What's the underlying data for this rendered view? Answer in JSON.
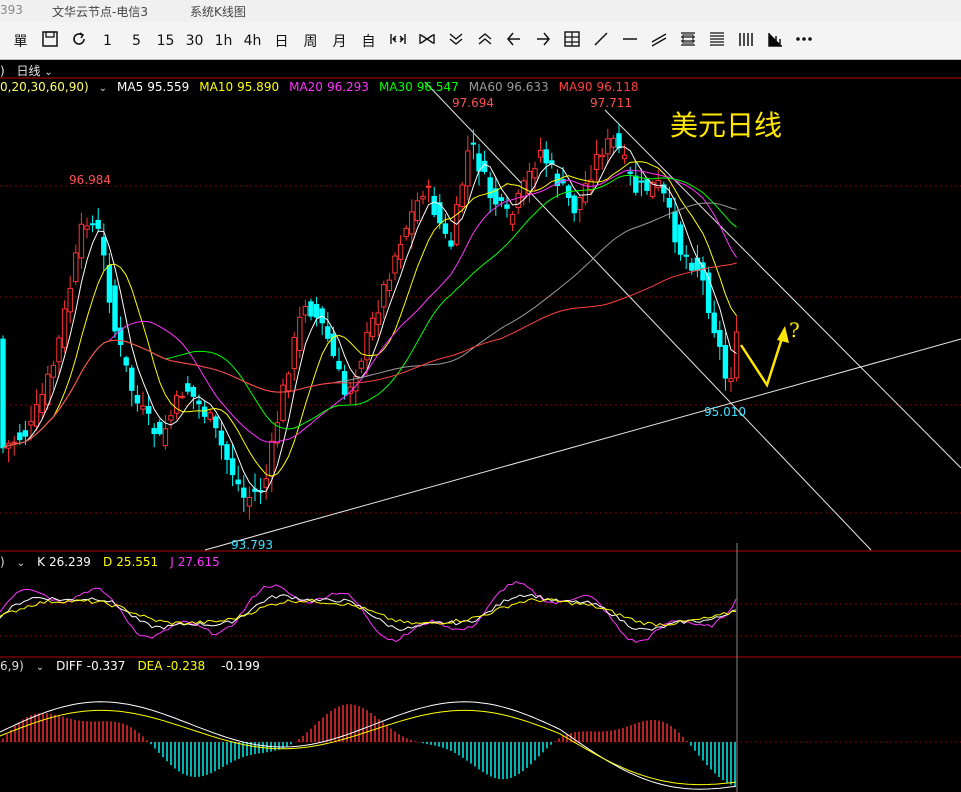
{
  "titlebar": {
    "code_fragment": "393",
    "tab_server": "文华云节点-电信3",
    "tab_system": "系统K线图"
  },
  "toolbar": {
    "buttons": [
      {
        "icon": "single-icon",
        "label": "單"
      },
      {
        "icon": "save-icon",
        "label": ""
      },
      {
        "icon": "refresh-icon",
        "label": ""
      },
      {
        "icon": "",
        "label": "1"
      },
      {
        "icon": "",
        "label": "5"
      },
      {
        "icon": "",
        "label": "15"
      },
      {
        "icon": "",
        "label": "30"
      },
      {
        "icon": "",
        "label": "1h"
      },
      {
        "icon": "",
        "label": "4h"
      },
      {
        "icon": "",
        "label": "日"
      },
      {
        "icon": "",
        "label": "周"
      },
      {
        "icon": "",
        "label": "月"
      },
      {
        "icon": "",
        "label": "自"
      },
      {
        "icon": "zoom-out-icon",
        "label": ""
      },
      {
        "icon": "zoom-in-icon",
        "label": ""
      },
      {
        "icon": "chevrons-down-icon",
        "label": ""
      },
      {
        "icon": "chevrons-up-icon",
        "label": ""
      },
      {
        "icon": "arrow-left-icon",
        "label": ""
      },
      {
        "icon": "arrow-right-icon",
        "label": ""
      },
      {
        "icon": "layout-icon",
        "label": ""
      },
      {
        "icon": "line-icon",
        "label": ""
      },
      {
        "icon": "hline-icon",
        "label": ""
      },
      {
        "icon": "parallel-icon",
        "label": ""
      },
      {
        "icon": "fib-icon",
        "label": ""
      },
      {
        "icon": "fib2-icon",
        "label": ""
      },
      {
        "icon": "bars-icon",
        "label": ""
      },
      {
        "icon": "indicator-icon",
        "label": ""
      },
      {
        "icon": "more-icon",
        "label": ""
      }
    ]
  },
  "period": {
    "label": "日线",
    "prefix": ")"
  },
  "ma_legend": {
    "params": "0,20,30,60,90)",
    "items": [
      {
        "label": "MA5",
        "value": "95.559",
        "color": "#ffffff"
      },
      {
        "label": "MA10",
        "value": "95.890",
        "color": "#ffff00"
      },
      {
        "label": "MA20",
        "value": "96.293",
        "color": "#ff33ff"
      },
      {
        "label": "MA30",
        "value": "96.547",
        "color": "#00ff00"
      },
      {
        "label": "MA60",
        "value": "96.633",
        "color": "#9a9a9a"
      },
      {
        "label": "MA90",
        "value": "96.118",
        "color": "#ff4040"
      }
    ]
  },
  "price_labels": [
    {
      "text": "96.984",
      "color": "#ff5050"
    },
    {
      "text": "97.694",
      "color": "#ff5050"
    },
    {
      "text": "97.711",
      "color": "#ff5050"
    },
    {
      "text": "93.793",
      "color": "#40e0ff"
    },
    {
      "text": "95.010",
      "color": "#40e0ff"
    }
  ],
  "annotation": {
    "title": "美元日线",
    "question": "?"
  },
  "kdj_legend": {
    "params": ")",
    "items": [
      {
        "label": "K",
        "value": "26.239",
        "color": "#ffffff"
      },
      {
        "label": "D",
        "value": "25.551",
        "color": "#ffff00"
      },
      {
        "label": "J",
        "value": "27.615",
        "color": "#ff33ff"
      }
    ]
  },
  "macd_legend": {
    "params": "6,9)",
    "items": [
      {
        "label": "DIFF",
        "value": "-0.337",
        "color": "#ffffff"
      },
      {
        "label": "DEA",
        "value": "-0.238",
        "color": "#ffff00"
      },
      {
        "label": "",
        "value": "-0.199",
        "color": "#ffffff"
      }
    ]
  },
  "colors": {
    "up": "#ff3232",
    "down": "#00ffff",
    "bg": "#000000",
    "grid": "#8b0000"
  }
}
